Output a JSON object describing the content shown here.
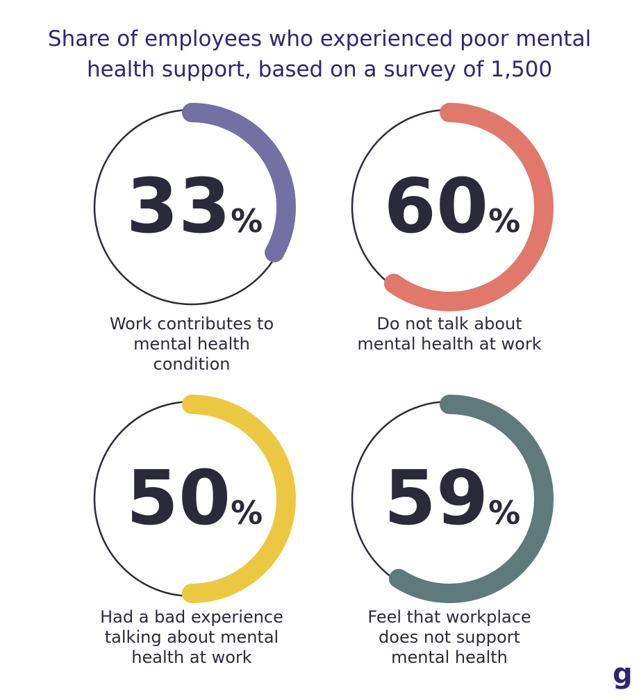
{
  "title_lines": [
    "Share of employees who experienced poor mental",
    "health support, based on a survey of 1,500"
  ],
  "chart_data": {
    "type": "donut",
    "title": "Share of employees who experienced poor mental health support, based on a survey of 1,500",
    "unit": "%",
    "items": [
      {
        "value": 33,
        "label": "33",
        "unit": "%",
        "color": "#7570a3",
        "caption_lines": [
          "Work contributes to",
          "mental health",
          "condition"
        ]
      },
      {
        "value": 60,
        "label": "60",
        "unit": "%",
        "color": "#e0786c",
        "caption_lines": [
          "Do not talk about",
          "mental health at work"
        ]
      },
      {
        "value": 50,
        "label": "50",
        "unit": "%",
        "color": "#ecc842",
        "caption_lines": [
          "Had a bad experience",
          "talking about mental",
          "health at work"
        ]
      },
      {
        "value": 59,
        "label": "59",
        "unit": "%",
        "color": "#5e7a7b",
        "caption_lines": [
          "Feel that workplace",
          "does not support",
          "mental health"
        ]
      }
    ]
  },
  "logo": "g"
}
